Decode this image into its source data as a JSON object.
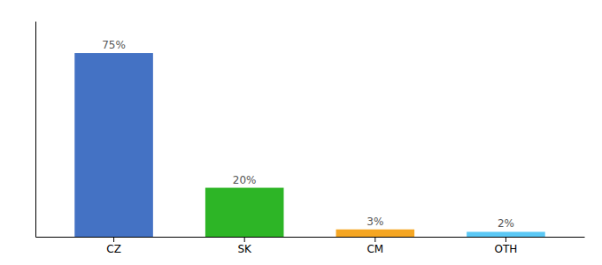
{
  "chart_data": {
    "type": "bar",
    "categories": [
      "CZ",
      "SK",
      "CM",
      "OTH"
    ],
    "values": [
      75,
      20,
      3,
      2
    ],
    "colors": [
      "#4472c4",
      "#2db526",
      "#f5a623",
      "#5bc8f5"
    ],
    "value_labels": [
      "75%",
      "20%",
      "3%",
      "2%"
    ],
    "data_labels": true,
    "ylim": [
      0,
      88
    ],
    "tick_labels": "x",
    "grid": false
  }
}
